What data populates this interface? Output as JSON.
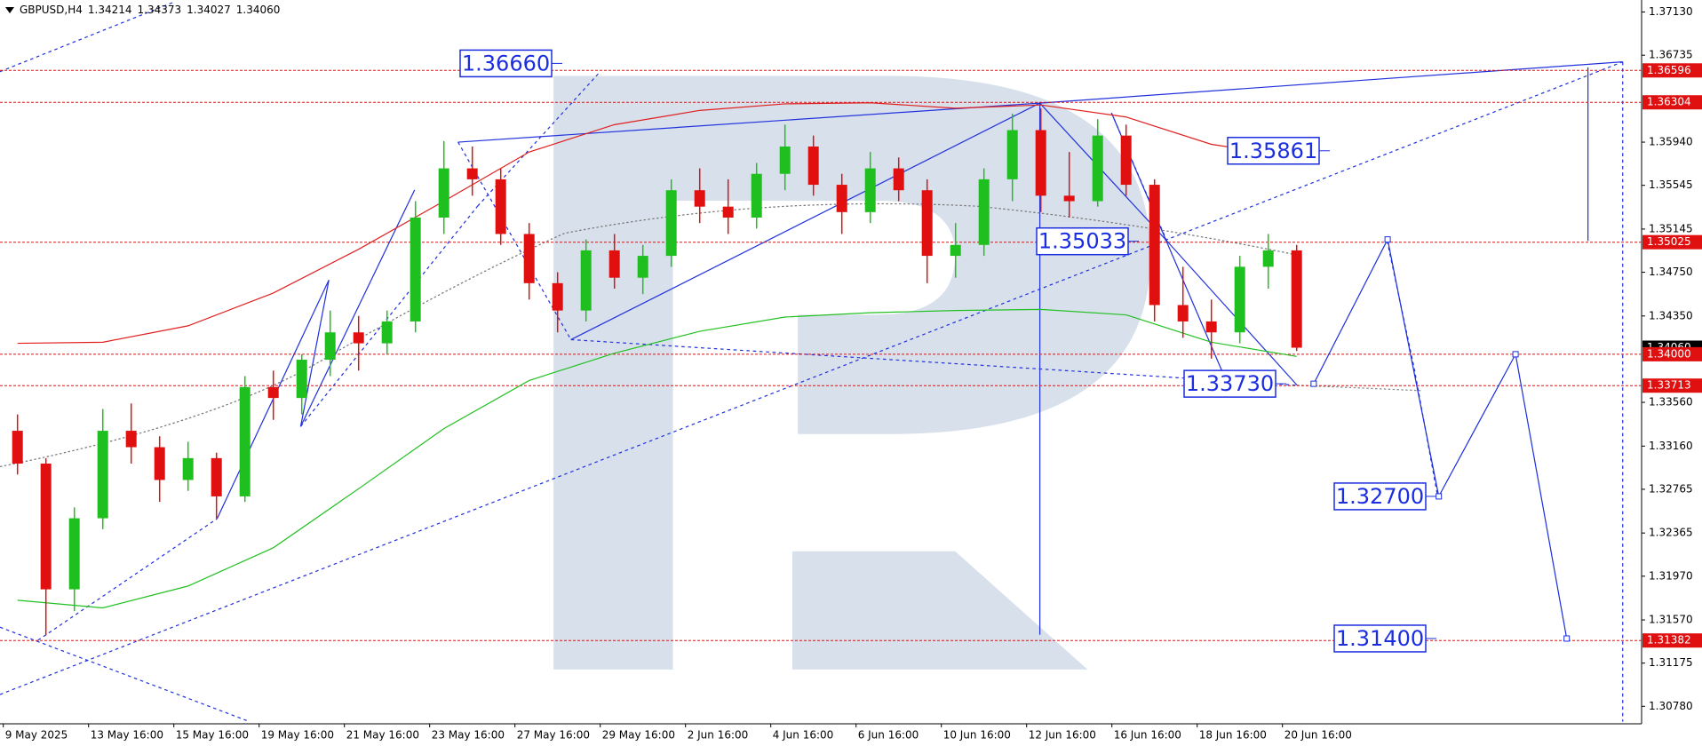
{
  "chart_data": {
    "type": "candlestick",
    "header": {
      "symbol": "GBPUSD,H4",
      "quote": [
        "1.34214",
        "1.34373",
        "1.34027",
        "1.34060"
      ]
    },
    "x_labels": [
      "9 May 2025",
      "13 May 16:00",
      "15 May 16:00",
      "19 May 16:00",
      "21 May 16:00",
      "23 May 16:00",
      "27 May 16:00",
      "29 May 16:00",
      "2 Jun 16:00",
      "4 Jun 16:00",
      "6 Jun 16:00",
      "10 Jun 16:00",
      "12 Jun 16:00",
      "16 Jun 16:00",
      "18 Jun 16:00",
      "20 Jun 16:00"
    ],
    "open": [
      1.333,
      1.33,
      1.3185,
      1.325,
      1.333,
      1.3315,
      1.3285,
      1.3305,
      1.327,
      1.337,
      1.336,
      1.3395,
      1.342,
      1.341,
      1.343,
      1.3525,
      1.357,
      1.356,
      1.351,
      1.3465,
      1.344,
      1.3495,
      1.347,
      1.349,
      1.355,
      1.3535,
      1.3525,
      1.3565,
      1.359,
      1.3555,
      1.353,
      1.357,
      1.355,
      1.349,
      1.35,
      1.356,
      1.3605,
      1.3545,
      1.354,
      1.36,
      1.3555,
      1.3445,
      1.343,
      1.342,
      1.348,
      1.3495
    ],
    "high": [
      1.3345,
      1.3305,
      1.326,
      1.335,
      1.3355,
      1.3325,
      1.332,
      1.331,
      1.338,
      1.3385,
      1.34,
      1.344,
      1.3435,
      1.344,
      1.354,
      1.3595,
      1.359,
      1.357,
      1.352,
      1.3475,
      1.3505,
      1.351,
      1.35,
      1.356,
      1.357,
      1.356,
      1.3575,
      1.361,
      1.36,
      1.3565,
      1.3585,
      1.358,
      1.356,
      1.352,
      1.357,
      1.362,
      1.3625,
      1.3585,
      1.3615,
      1.361,
      1.356,
      1.348,
      1.345,
      1.349,
      1.351,
      1.35
    ],
    "low": [
      1.329,
      1.3143,
      1.3165,
      1.324,
      1.33,
      1.3265,
      1.3275,
      1.325,
      1.3265,
      1.334,
      1.3345,
      1.338,
      1.3385,
      1.34,
      1.342,
      1.351,
      1.3545,
      1.35,
      1.345,
      1.342,
      1.343,
      1.346,
      1.3455,
      1.348,
      1.352,
      1.351,
      1.3515,
      1.355,
      1.3545,
      1.351,
      1.352,
      1.354,
      1.3465,
      1.347,
      1.349,
      1.354,
      1.353,
      1.3525,
      1.3535,
      1.3545,
      1.343,
      1.3415,
      1.3396,
      1.341,
      1.346,
      1.3403
    ],
    "close": [
      1.33,
      1.3185,
      1.325,
      1.333,
      1.3315,
      1.3285,
      1.3305,
      1.327,
      1.337,
      1.336,
      1.3395,
      1.342,
      1.341,
      1.343,
      1.3525,
      1.357,
      1.356,
      1.351,
      1.3465,
      1.344,
      1.3495,
      1.347,
      1.349,
      1.355,
      1.3535,
      1.3525,
      1.3565,
      1.359,
      1.3555,
      1.353,
      1.357,
      1.355,
      1.349,
      1.35,
      1.356,
      1.3605,
      1.3545,
      1.354,
      1.36,
      1.3555,
      1.3445,
      1.343,
      1.342,
      1.348,
      1.3495,
      1.3406
    ],
    "up_color": "#1fbf1f",
    "down_color": "#e01010",
    "ylim": [
      1.3062,
      1.3724
    ],
    "yticks": [
      {
        "value": 1.3713,
        "label": "1.37130"
      },
      1.36735,
      {
        "value": 1.3594,
        "label": "1.35940"
      },
      1.35545,
      1.35145,
      {
        "value": 1.3475,
        "label": "1.34750"
      },
      {
        "value": 1.3435,
        "label": "1.34350"
      },
      {
        "value": 1.3356,
        "label": "1.33560"
      },
      {
        "value": 1.3316,
        "label": "1.33160"
      },
      1.32765,
      1.32365,
      {
        "value": 1.3197,
        "label": "1.31970"
      },
      {
        "value": 1.3157,
        "label": "1.31570"
      },
      1.31175,
      {
        "value": 1.3078,
        "label": "1.30780"
      }
    ],
    "current_price": {
      "value": 1.3406,
      "label": "1.34060"
    },
    "levels": [
      {
        "value": 1.36596,
        "label": "1.36596"
      },
      {
        "value": 1.36304,
        "label": "1.36304"
      },
      {
        "value": 1.35025,
        "label": "1.35025"
      },
      {
        "value": 1.34,
        "label": "1.34000"
      },
      {
        "value": 1.33713,
        "label": "1.33713"
      },
      {
        "value": 1.31382,
        "label": "1.31382"
      }
    ],
    "level_color": "#e01010",
    "targets": [
      {
        "value": 1.3666,
        "label": "1.36660"
      },
      {
        "value": 1.35861,
        "label": "1.35861"
      },
      {
        "value": 1.35033,
        "label": "1.35033"
      },
      {
        "value": 1.3373,
        "label": "1.33730"
      },
      {
        "value": 1.327,
        "label": "1.32700"
      },
      {
        "value": 1.314,
        "label": "1.31400"
      }
    ],
    "target_color": "#1a2ee0",
    "forecast": {
      "x": [
        45.6,
        48.2,
        50.0,
        52.7,
        54.5
      ],
      "values": [
        1.3373,
        1.3505,
        1.327,
        1.34,
        1.314
      ]
    },
    "ma_slow": {
      "color": "#e02020",
      "x": [
        0,
        3,
        6,
        9,
        12,
        15,
        18,
        21,
        24,
        27,
        30,
        33,
        36,
        39,
        42,
        45
      ],
      "values": [
        1.341,
        1.3411,
        1.3426,
        1.3456,
        1.3496,
        1.354,
        1.3585,
        1.361,
        1.3623,
        1.3629,
        1.363,
        1.3625,
        1.3628,
        1.3617,
        1.3592,
        1.358
      ]
    },
    "ma_fast": {
      "color": "#22c022",
      "x": [
        0,
        3,
        6,
        9,
        12,
        15,
        18,
        21,
        24,
        27,
        30,
        33,
        36,
        39,
        42,
        45
      ],
      "values": [
        1.3175,
        1.3168,
        1.3188,
        1.3223,
        1.3277,
        1.3332,
        1.3376,
        1.3401,
        1.3421,
        1.3434,
        1.3438,
        1.344,
        1.3441,
        1.3436,
        1.3411,
        1.3398
      ]
    }
  }
}
